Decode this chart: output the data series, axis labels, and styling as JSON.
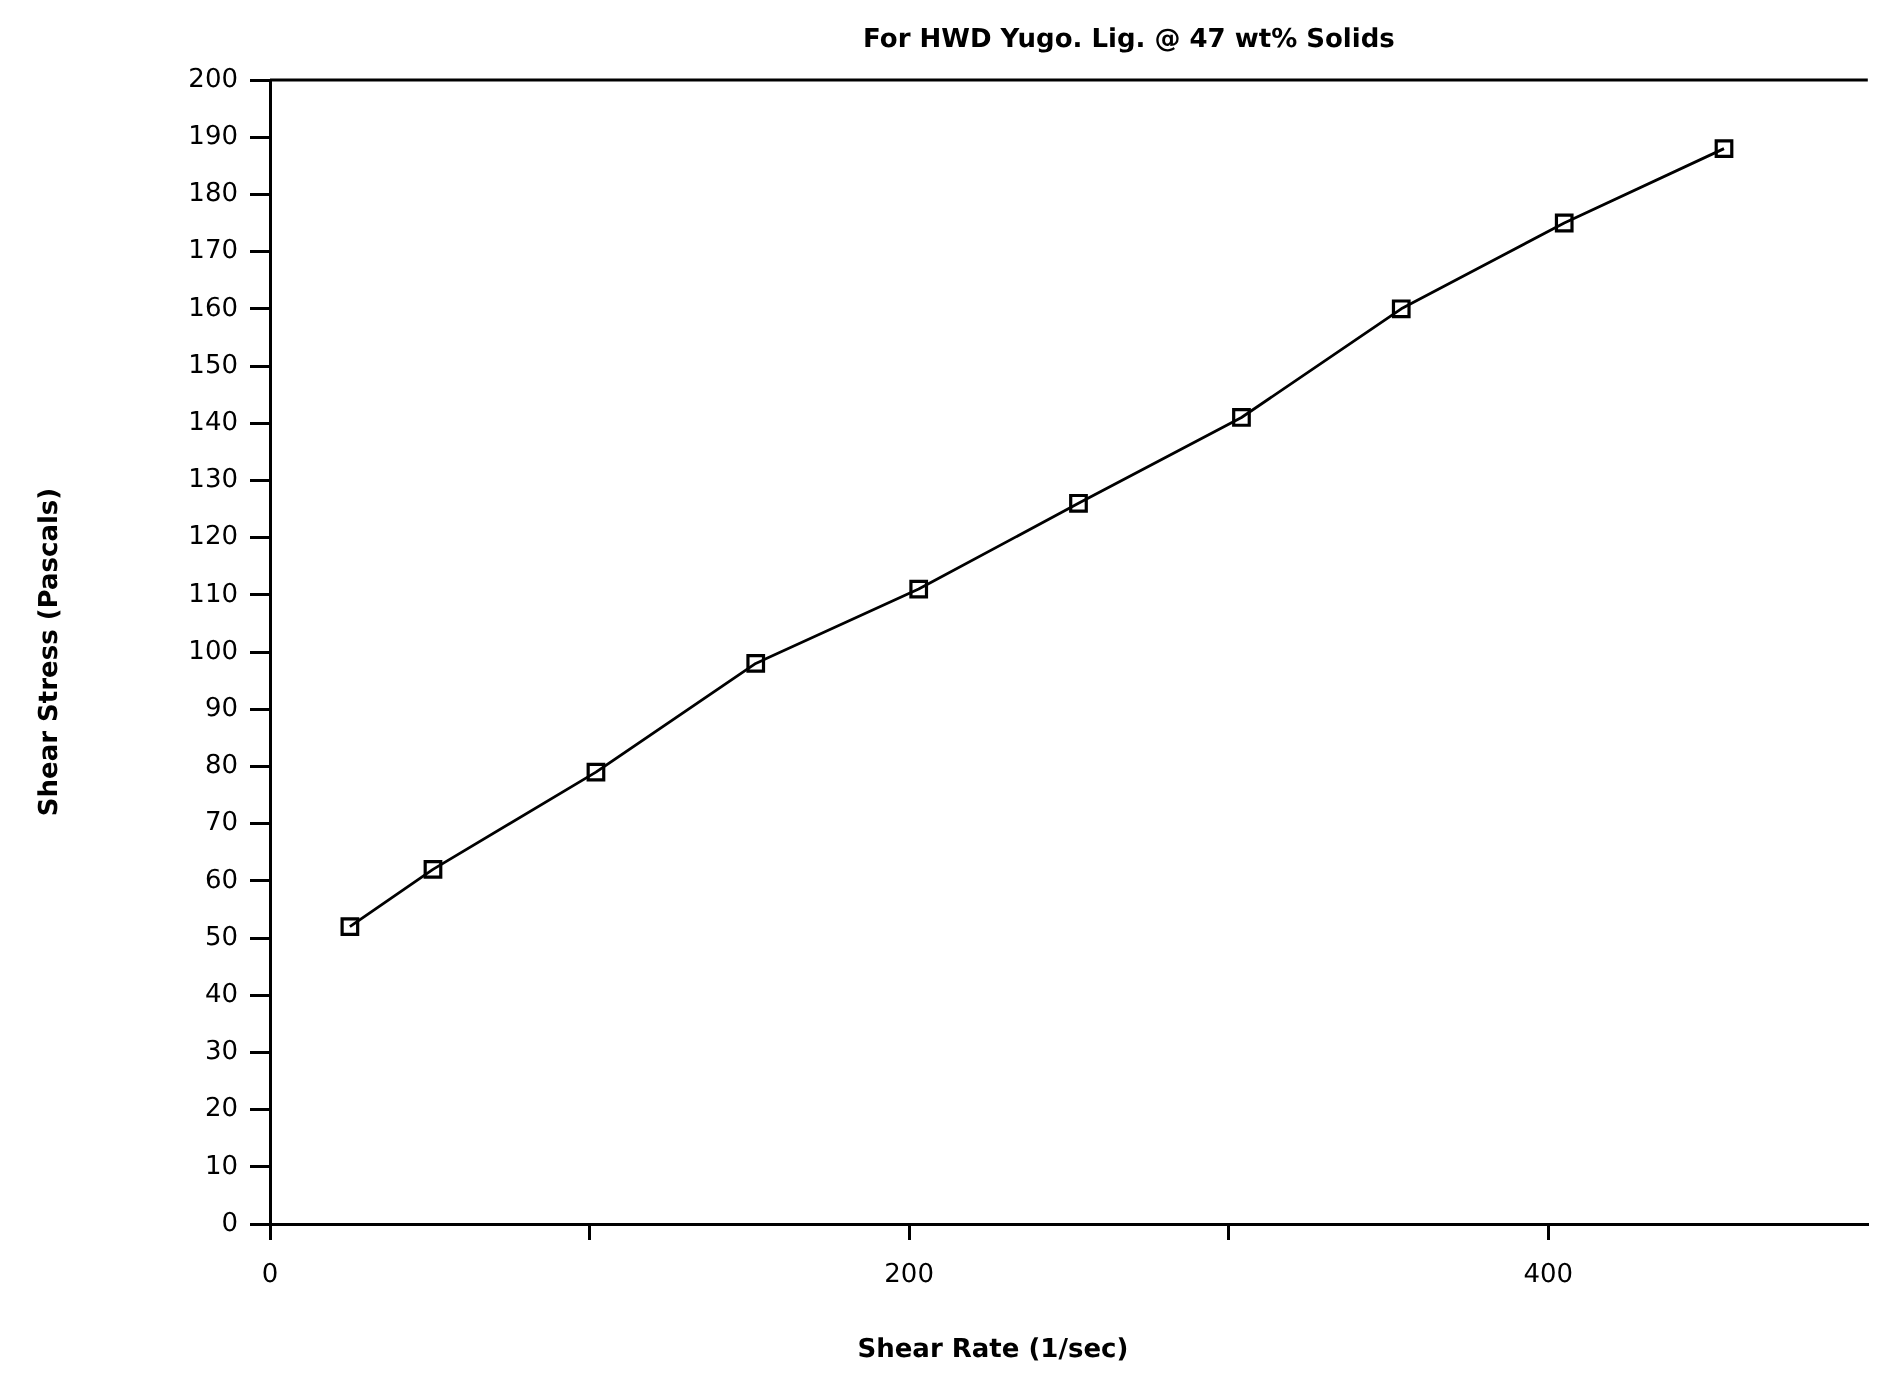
{
  "chart_data": {
    "type": "line",
    "title": "For HWD Yugo. Lig. @ 47 wt% Solids",
    "xlabel": "Shear Rate (1/sec)",
    "ylabel": "Shear Stress (Pascals)",
    "x": [
      25,
      51,
      102,
      152,
      203,
      253,
      304,
      354,
      405,
      455
    ],
    "series": [
      {
        "color": "#000000",
        "values": [
          52,
          62,
          79,
          98,
          111,
          126,
          141,
          160,
          175,
          188
        ]
      }
    ],
    "xlim": [
      0,
      500
    ],
    "xticks": [
      0,
      {
        "value": 100,
        "label": null
      },
      200,
      {
        "value": 300,
        "label": null
      },
      400
    ],
    "ylim": [
      0,
      200
    ],
    "yticks": [
      0,
      10,
      20,
      30,
      40,
      50,
      60,
      70,
      80,
      90,
      100,
      110,
      120,
      130,
      140,
      150,
      160,
      170,
      180,
      190,
      200
    ],
    "marker": "square",
    "line_style": "solid",
    "grid": false,
    "legend": false
  }
}
